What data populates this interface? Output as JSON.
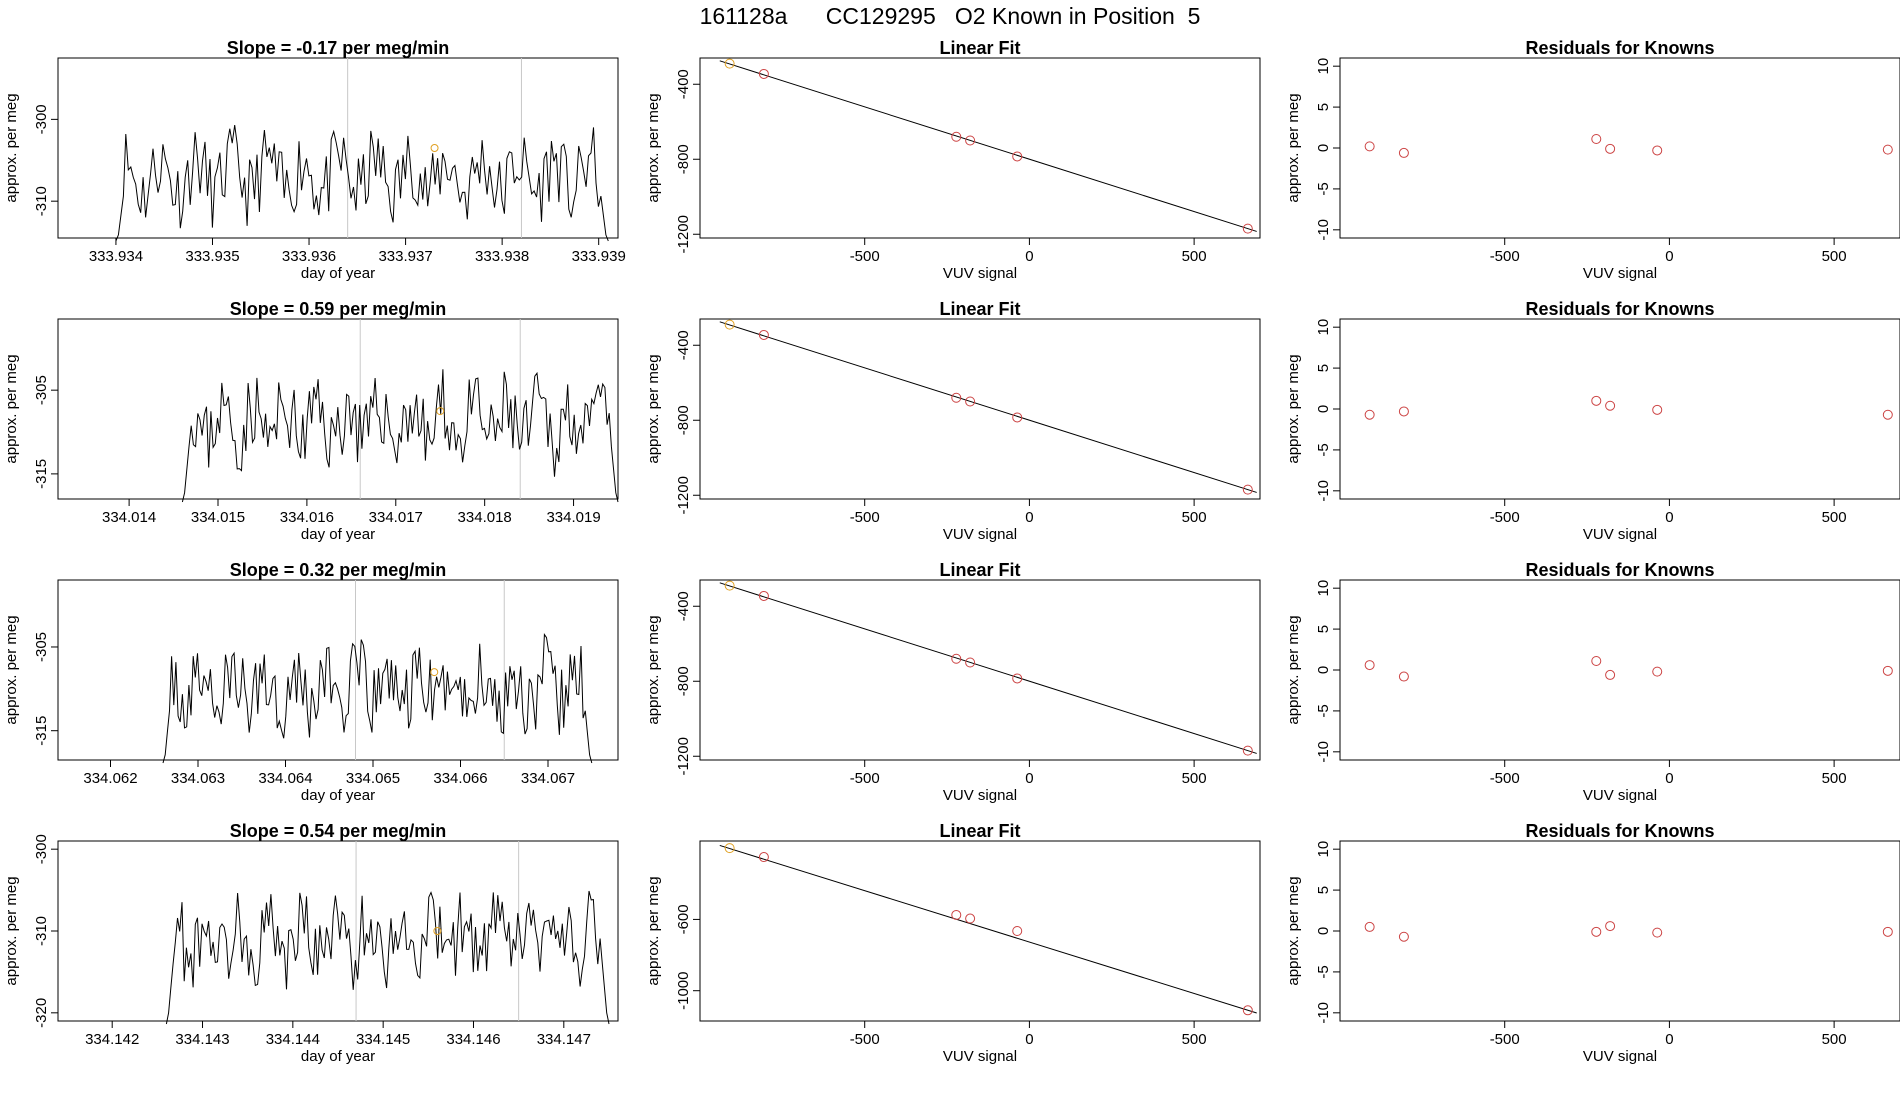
{
  "page_title": "161128a      CC129295   O2 Known in Position  5",
  "colors": {
    "line": "#000000",
    "known": "#cc4444",
    "highlight": "#e0a020",
    "vline": "#c8c8c8"
  },
  "chart_data": [
    {
      "type": "line",
      "title": "Slope =  -0.17  per meg/min",
      "xlabel": "day of year",
      "ylabel": "approx. per meg",
      "xlim": [
        333.9334,
        333.9392
      ],
      "ylim": [
        -314.5,
        -292.5
      ],
      "xticks": [
        "333.934",
        "333.935",
        "333.936",
        "333.937",
        "333.938",
        "333.939"
      ],
      "xtick_values": [
        333.934,
        333.935,
        333.936,
        333.937,
        333.938,
        333.939
      ],
      "yticks": [
        "-300",
        "-310"
      ],
      "ytick_values": [
        -300,
        -310
      ],
      "x_start": 333.934,
      "x_end": 333.9391,
      "baseline": -307,
      "amplitude": 4.5,
      "seed": 11,
      "vlines": [
        333.9364,
        333.9382
      ],
      "highlight": {
        "x": 333.9373,
        "y": -303.5
      }
    },
    {
      "type": "scatter",
      "title": "Linear Fit",
      "xlabel": "VUV signal",
      "ylabel": "approx. per meg",
      "xlim": [
        -1000,
        700
      ],
      "ylim": [
        -1220,
        -260
      ],
      "xticks": [
        "-500",
        "0",
        "500"
      ],
      "xtick_values": [
        -500,
        0,
        500
      ],
      "yticks": [
        "-400",
        "-800",
        "-1200"
      ],
      "ytick_values": [
        -400,
        -800,
        -1200
      ],
      "x": [
        -910,
        -806,
        -222,
        -180,
        -37,
        663
      ],
      "y": [
        -290,
        -345,
        -680,
        -700,
        -785,
        -1170
      ],
      "highlight_index": 0,
      "fit_line": [
        [
          -940,
          -275
        ],
        [
          690,
          -1185
        ]
      ]
    },
    {
      "type": "scatter",
      "title": "Residuals for Knowns",
      "xlabel": "VUV signal",
      "ylabel": "approx. per meg",
      "xlim": [
        -1000,
        700
      ],
      "ylim": [
        -11,
        11
      ],
      "xticks": [
        "-500",
        "0",
        "500"
      ],
      "xtick_values": [
        -500,
        0,
        500
      ],
      "yticks": [
        "10",
        "5",
        "0",
        "-5",
        "-10"
      ],
      "ytick_values": [
        10,
        5,
        0,
        -5,
        -10
      ],
      "x": [
        -910,
        -806,
        -222,
        -180,
        -37,
        663
      ],
      "y": [
        0.2,
        -0.6,
        1.1,
        -0.1,
        -0.3,
        -0.2
      ]
    },
    {
      "type": "line",
      "title": "Slope =  0.59  per meg/min",
      "xlabel": "day of year",
      "ylabel": "approx. per meg",
      "xlim": [
        334.0132,
        334.0195
      ],
      "ylim": [
        -318,
        -296.5
      ],
      "xticks": [
        "334.014",
        "334.015",
        "334.016",
        "334.017",
        "334.018",
        "334.019"
      ],
      "xtick_values": [
        334.014,
        334.015,
        334.016,
        334.017,
        334.018,
        334.019
      ],
      "yticks": [
        "-305",
        "-315"
      ],
      "ytick_values": [
        -305,
        -315
      ],
      "x_start": 334.0146,
      "x_end": 334.0195,
      "baseline": -309,
      "amplitude": 4.5,
      "seed": 23,
      "vlines": [
        334.0166,
        334.0184
      ],
      "highlight": {
        "x": 334.0175,
        "y": -307.5
      }
    },
    {
      "type": "scatter",
      "title": "Linear Fit",
      "xlabel": "VUV signal",
      "ylabel": "approx. per meg",
      "xlim": [
        -1000,
        700
      ],
      "ylim": [
        -1220,
        -260
      ],
      "xticks": [
        "-500",
        "0",
        "500"
      ],
      "xtick_values": [
        -500,
        0,
        500
      ],
      "yticks": [
        "-400",
        "-800",
        "-1200"
      ],
      "ytick_values": [
        -400,
        -800,
        -1200
      ],
      "x": [
        -910,
        -806,
        -222,
        -180,
        -37,
        663
      ],
      "y": [
        -290,
        -345,
        -680,
        -700,
        -785,
        -1170
      ],
      "highlight_index": 0,
      "fit_line": [
        [
          -940,
          -275
        ],
        [
          690,
          -1185
        ]
      ]
    },
    {
      "type": "scatter",
      "title": "Residuals for Knowns",
      "xlabel": "VUV signal",
      "ylabel": "approx. per meg",
      "xlim": [
        -1000,
        700
      ],
      "ylim": [
        -11,
        11
      ],
      "xticks": [
        "-500",
        "0",
        "500"
      ],
      "xtick_values": [
        -500,
        0,
        500
      ],
      "yticks": [
        "10",
        "5",
        "0",
        "-5",
        "-10"
      ],
      "ytick_values": [
        10,
        5,
        0,
        -5,
        -10
      ],
      "x": [
        -910,
        -806,
        -222,
        -180,
        -37,
        663
      ],
      "y": [
        -0.7,
        -0.3,
        1.0,
        0.4,
        -0.1,
        -0.7
      ]
    },
    {
      "type": "line",
      "title": "Slope =  0.32  per meg/min",
      "xlabel": "day of year",
      "ylabel": "approx. per meg",
      "xlim": [
        334.0614,
        334.0678
      ],
      "ylim": [
        -318.5,
        -297
      ],
      "xticks": [
        "334.062",
        "334.063",
        "334.064",
        "334.065",
        "334.066",
        "334.067"
      ],
      "xtick_values": [
        334.062,
        334.063,
        334.064,
        334.065,
        334.066,
        334.067
      ],
      "yticks": [
        "-305",
        "-315"
      ],
      "ytick_values": [
        -305,
        -315
      ],
      "x_start": 334.0626,
      "x_end": 334.0675,
      "baseline": -310,
      "amplitude": 4.5,
      "seed": 37,
      "vlines": [
        334.0648,
        334.0665
      ],
      "highlight": {
        "x": 334.0657,
        "y": -308
      }
    },
    {
      "type": "scatter",
      "title": "Linear Fit",
      "xlabel": "VUV signal",
      "ylabel": "approx. per meg",
      "xlim": [
        -1000,
        700
      ],
      "ylim": [
        -1220,
        -260
      ],
      "xticks": [
        "-500",
        "0",
        "500"
      ],
      "xtick_values": [
        -500,
        0,
        500
      ],
      "yticks": [
        "-400",
        "-800",
        "-1200"
      ],
      "ytick_values": [
        -400,
        -800,
        -1200
      ],
      "x": [
        -910,
        -806,
        -222,
        -180,
        -37,
        663
      ],
      "y": [
        -290,
        -345,
        -680,
        -700,
        -785,
        -1170
      ],
      "highlight_index": 0,
      "fit_line": [
        [
          -940,
          -275
        ],
        [
          690,
          -1185
        ]
      ]
    },
    {
      "type": "scatter",
      "title": "Residuals for Knowns",
      "xlabel": "VUV signal",
      "ylabel": "approx. per meg",
      "xlim": [
        -1000,
        700
      ],
      "ylim": [
        -11,
        11
      ],
      "xticks": [
        "-500",
        "0",
        "500"
      ],
      "xtick_values": [
        -500,
        0,
        500
      ],
      "yticks": [
        "10",
        "5",
        "0",
        "-5",
        "-10"
      ],
      "ytick_values": [
        10,
        5,
        0,
        -5,
        -10
      ],
      "x": [
        -910,
        -806,
        -222,
        -180,
        -37,
        663
      ],
      "y": [
        0.6,
        -0.8,
        1.1,
        -0.6,
        -0.2,
        -0.1
      ]
    },
    {
      "type": "line",
      "title": "Slope =  0.54  per meg/min",
      "xlabel": "day of year",
      "ylabel": "approx. per meg",
      "xlim": [
        334.1414,
        334.1476
      ],
      "ylim": [
        -321,
        -299
      ],
      "xticks": [
        "334.142",
        "334.143",
        "334.144",
        "334.145",
        "334.146",
        "334.147"
      ],
      "xtick_values": [
        334.142,
        334.143,
        334.144,
        334.145,
        334.146,
        334.147
      ],
      "yticks": [
        "-300",
        "-310",
        "-320"
      ],
      "ytick_values": [
        -300,
        -310,
        -320
      ],
      "x_start": 334.1426,
      "x_end": 334.1475,
      "baseline": -311,
      "amplitude": 4.5,
      "seed": 53,
      "vlines": [
        334.1447,
        334.1465
      ],
      "highlight": {
        "x": 334.1456,
        "y": -310
      }
    },
    {
      "type": "scatter",
      "title": "Linear Fit",
      "xlabel": "VUV signal",
      "ylabel": "approx. per meg",
      "xlim": [
        -1000,
        700
      ],
      "ylim": [
        -1170,
        -160
      ],
      "xticks": [
        "-500",
        "0",
        "500"
      ],
      "xtick_values": [
        -500,
        0,
        500
      ],
      "yticks": [
        "-600",
        "-1000"
      ],
      "ytick_values": [
        -600,
        -1000
      ],
      "x": [
        -910,
        -806,
        -222,
        -180,
        -37,
        663
      ],
      "y": [
        -200,
        -250,
        -575,
        -595,
        -665,
        -1110
      ],
      "highlight_index": 0,
      "fit_line": [
        [
          -940,
          -185
        ],
        [
          690,
          -1125
        ]
      ]
    },
    {
      "type": "scatter",
      "title": "Residuals for Knowns",
      "xlabel": "VUV signal",
      "ylabel": "approx. per meg",
      "xlim": [
        -1000,
        700
      ],
      "ylim": [
        -11,
        11
      ],
      "xticks": [
        "-500",
        "0",
        "500"
      ],
      "xtick_values": [
        -500,
        0,
        500
      ],
      "yticks": [
        "10",
        "5",
        "0",
        "-5",
        "-10"
      ],
      "ytick_values": [
        10,
        5,
        0,
        -5,
        -10
      ],
      "x": [
        -910,
        -806,
        -222,
        -180,
        -37,
        663
      ],
      "y": [
        0.5,
        -0.7,
        -0.1,
        0.6,
        -0.2,
        -0.1
      ]
    }
  ]
}
